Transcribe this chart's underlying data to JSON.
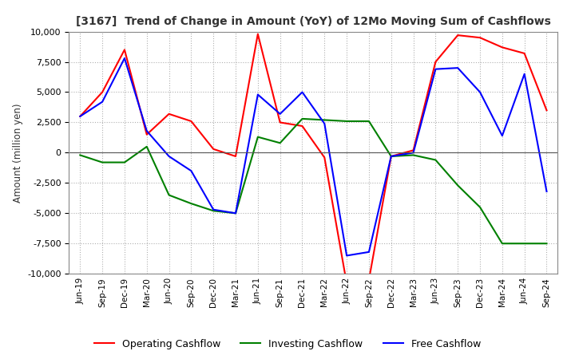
{
  "title": "[3167]  Trend of Change in Amount (YoY) of 12Mo Moving Sum of Cashflows",
  "ylabel": "Amount (million yen)",
  "ylim": [
    -10000,
    10000
  ],
  "yticks": [
    -10000,
    -7500,
    -5000,
    -2500,
    0,
    2500,
    5000,
    7500,
    10000
  ],
  "x_labels": [
    "Jun-19",
    "Sep-19",
    "Dec-19",
    "Mar-20",
    "Jun-20",
    "Sep-20",
    "Dec-20",
    "Mar-21",
    "Jun-21",
    "Sep-21",
    "Dec-21",
    "Mar-22",
    "Jun-22",
    "Sep-22",
    "Dec-22",
    "Mar-23",
    "Jun-23",
    "Sep-23",
    "Dec-23",
    "Mar-24",
    "Jun-24",
    "Sep-24"
  ],
  "operating": [
    3000,
    5000,
    8500,
    1500,
    3200,
    2600,
    300,
    -300,
    9800,
    2500,
    2200,
    -400,
    -10800,
    -10500,
    -300,
    200,
    7500,
    9700,
    9500,
    8700,
    8200,
    3500
  ],
  "investing": [
    -200,
    -800,
    -800,
    500,
    -3500,
    -4200,
    -4800,
    -5000,
    1300,
    800,
    2800,
    2700,
    2600,
    2600,
    -300,
    -200,
    -600,
    -2700,
    -4500,
    -7500,
    -7500,
    -7500
  ],
  "free": [
    3000,
    4200,
    7800,
    1800,
    -300,
    -1500,
    -4700,
    -5000,
    4800,
    3200,
    5000,
    2400,
    -8500,
    -8200,
    -300,
    0,
    6900,
    7000,
    5000,
    1400,
    6500,
    -3200
  ],
  "colors": {
    "operating": "#FF0000",
    "investing": "#008000",
    "free": "#0000FF"
  },
  "legend": [
    "Operating Cashflow",
    "Investing Cashflow",
    "Free Cashflow"
  ],
  "background": "#FFFFFF",
  "grid_color": "#B0B0B0"
}
